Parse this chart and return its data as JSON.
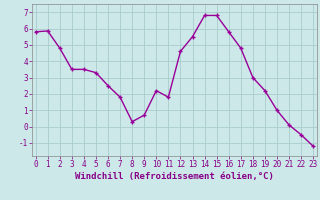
{
  "x": [
    0,
    1,
    2,
    3,
    4,
    5,
    6,
    7,
    8,
    9,
    10,
    11,
    12,
    13,
    14,
    15,
    16,
    17,
    18,
    19,
    20,
    21,
    22,
    23
  ],
  "y": [
    5.8,
    5.85,
    4.8,
    3.5,
    3.5,
    3.3,
    2.5,
    1.8,
    0.3,
    0.7,
    2.2,
    1.8,
    4.6,
    5.5,
    6.8,
    6.8,
    5.8,
    4.8,
    3.0,
    2.2,
    1.0,
    0.1,
    -0.5,
    -1.2
  ],
  "line_color": "#990099",
  "marker_color": "#990099",
  "bg_color": "#cce8e8",
  "grid_color": "#aacccc",
  "xlabel": "Windchill (Refroidissement éolien,°C)",
  "ylim": [
    -1.8,
    7.5
  ],
  "xlim": [
    -0.3,
    23.3
  ],
  "yticks": [
    -1,
    0,
    1,
    2,
    3,
    4,
    5,
    6,
    7
  ],
  "xticks": [
    0,
    1,
    2,
    3,
    4,
    5,
    6,
    7,
    8,
    9,
    10,
    11,
    12,
    13,
    14,
    15,
    16,
    17,
    18,
    19,
    20,
    21,
    22,
    23
  ],
  "tick_color": "#880088",
  "xlabel_color": "#880088",
  "label_fontsize": 6.5,
  "tick_fontsize": 5.5,
  "linewidth": 1.0,
  "markersize": 3.5,
  "spine_color": "#888888"
}
